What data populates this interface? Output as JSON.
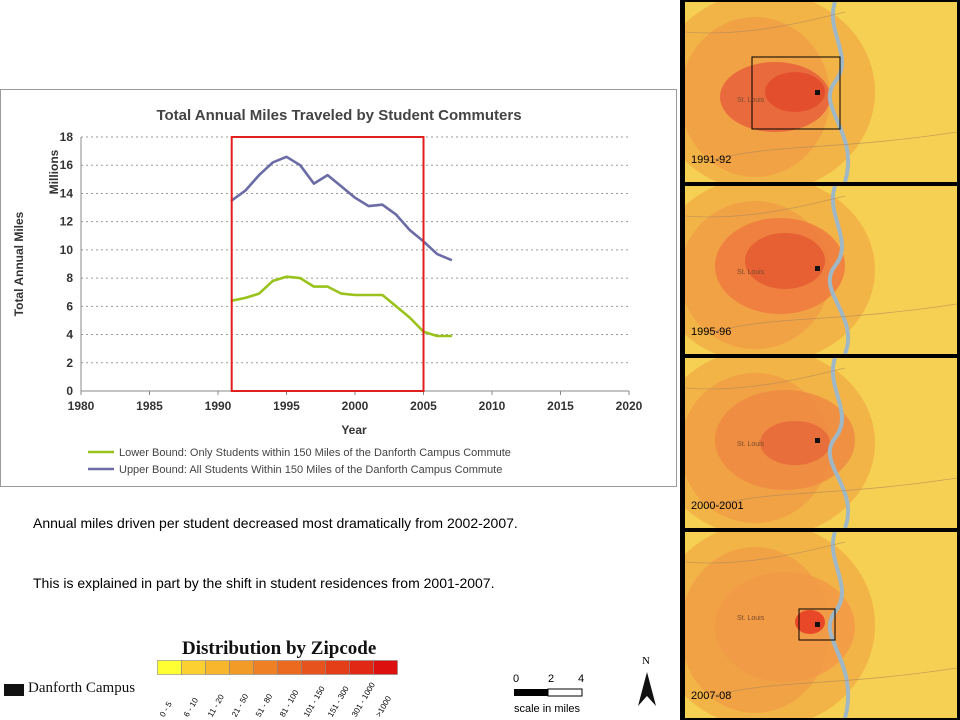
{
  "chart_data": {
    "type": "line",
    "title": "Total Annual Miles Traveled by Student Commuters",
    "xlabel": "Year",
    "ylabel": "Total Annual Miles",
    "yunit_label": "Millions",
    "xlim": [
      1980,
      2020
    ],
    "ylim": [
      0,
      18
    ],
    "xticks": [
      1980,
      1985,
      1990,
      1995,
      2000,
      2005,
      2010,
      2015,
      2020
    ],
    "yticks": [
      0,
      2,
      4,
      6,
      8,
      10,
      12,
      14,
      16,
      18
    ],
    "grid": "horizontal dotted",
    "legend_position": "bottom",
    "highlight_range": [
      1991,
      2005
    ],
    "series": [
      {
        "name": "Lower Bound: Only Students within 150 Miles of the Danforth Campus Commute",
        "color": "#99c31c",
        "x": [
          1991,
          1992,
          1993,
          1994,
          1995,
          1996,
          1997,
          1998,
          1999,
          2000,
          2001,
          2002,
          2003,
          2004,
          2005,
          2006,
          2007
        ],
        "y": [
          6.4,
          6.6,
          6.9,
          7.8,
          8.1,
          8.0,
          7.4,
          7.4,
          6.9,
          6.8,
          6.8,
          6.8,
          6.0,
          5.2,
          4.2,
          3.9,
          3.9
        ]
      },
      {
        "name": "Upper Bound: All Students Within 150 Miles of the Danforth Campus Commute",
        "color": "#6b6ba6",
        "x": [
          1991,
          1992,
          1993,
          1994,
          1995,
          1996,
          1997,
          1998,
          1999,
          2000,
          2001,
          2002,
          2003,
          2004,
          2005,
          2006,
          2007
        ],
        "y": [
          13.5,
          14.2,
          15.3,
          16.2,
          16.6,
          16.0,
          14.7,
          15.3,
          14.5,
          13.7,
          13.1,
          13.2,
          12.5,
          11.4,
          10.6,
          9.7,
          9.3
        ]
      }
    ]
  },
  "caption": {
    "para1": "Annual miles driven per student decreased most dramatically from 2002-2007.",
    "para2": "This is explained in part by the shift in student residences from 2001-2007."
  },
  "zip_legend": {
    "title": "Distribution by Zipcode",
    "bins": [
      {
        "label": "0 - 5",
        "color": "#ffff33"
      },
      {
        "label": "6 - 10",
        "color": "#fbd030"
      },
      {
        "label": "11 - 20",
        "color": "#f7b62c"
      },
      {
        "label": "21 - 50",
        "color": "#f39b27"
      },
      {
        "label": "51 - 80",
        "color": "#ef8124"
      },
      {
        "label": "81 - 100",
        "color": "#eb6a20"
      },
      {
        "label": "101 - 150",
        "color": "#e7531c"
      },
      {
        "label": "151 - 300",
        "color": "#e33e18"
      },
      {
        "label": "301 - 1000",
        "color": "#e02814"
      },
      {
        "label": ">1000",
        "color": "#dd1010"
      }
    ]
  },
  "campus_key": {
    "label": "Danforth Campus"
  },
  "scale_bar": {
    "ticks": [
      "0",
      "2",
      "4"
    ],
    "caption": "scale in miles"
  },
  "north_label": "N",
  "maps": [
    {
      "year": "1991-92",
      "city_label": "St. Louis"
    },
    {
      "year": "1995-96",
      "city_label": "St. Louis"
    },
    {
      "year": "2000-2001",
      "city_label": "St. Louis"
    },
    {
      "year": "2007-08",
      "city_label": "St. Louis"
    }
  ]
}
